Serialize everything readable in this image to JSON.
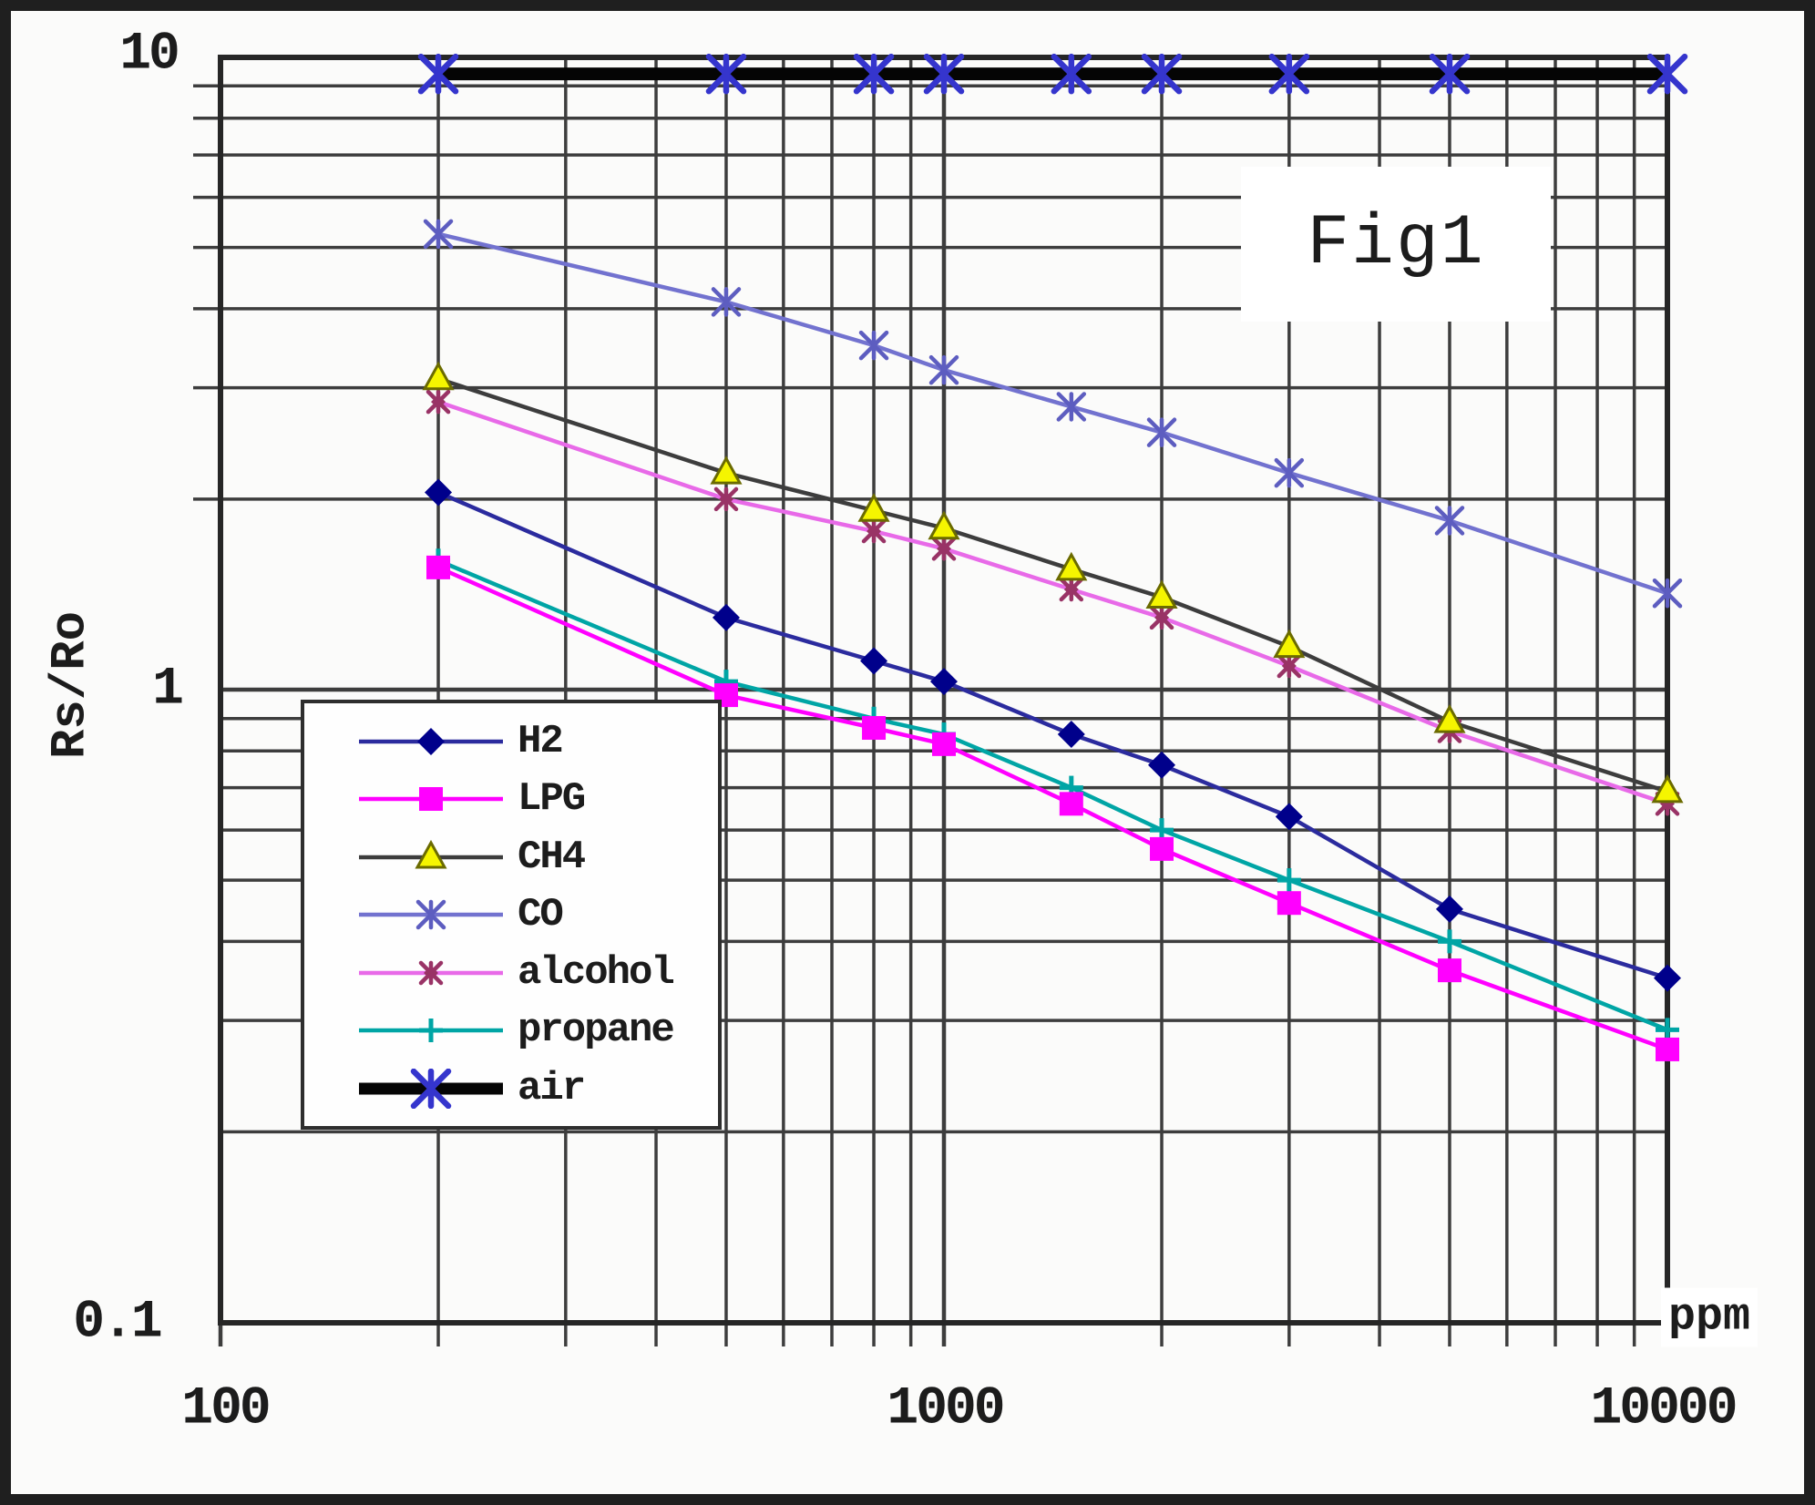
{
  "figure": {
    "title": "Fig1",
    "y_axis_label": "Rs/Ro",
    "x_axis_unit": "ppm",
    "y_tick_labels": [
      "10",
      "1",
      "0.1"
    ],
    "x_tick_labels": [
      "100",
      "1000",
      "10000"
    ]
  },
  "colors": {
    "grid": "#3d3d3d",
    "frame": "#262626",
    "background": "#ffffff",
    "text": "#1c1c1c"
  },
  "chart_data": {
    "type": "line",
    "title": "Fig1",
    "xlabel": "ppm",
    "ylabel": "Rs/Ro",
    "x_scale": "log",
    "y_scale": "log",
    "xlim": [
      100,
      10000
    ],
    "ylim": [
      0.1,
      10
    ],
    "grid": "log minor gridlines on both axes",
    "legend_position": "lower-left box",
    "x": [
      200,
      500,
      800,
      1000,
      1500,
      2000,
      3000,
      5000,
      10000
    ],
    "series": [
      {
        "name": "H2",
        "marker": "diamond",
        "color": "#2b2b9e",
        "marker_color": "#00008b",
        "values": [
          2.05,
          1.3,
          1.11,
          1.03,
          0.85,
          0.76,
          0.63,
          0.45,
          0.35
        ]
      },
      {
        "name": "LPG",
        "marker": "square",
        "color": "#ff00ff",
        "marker_color": "#ff00ff",
        "values": [
          1.56,
          0.98,
          0.87,
          0.82,
          0.66,
          0.56,
          0.46,
          0.36,
          0.27
        ]
      },
      {
        "name": "CH4",
        "marker": "triangle",
        "color": "#3d3d3d",
        "marker_color": "#f5f500",
        "values": [
          3.1,
          2.2,
          1.92,
          1.8,
          1.55,
          1.4,
          1.17,
          0.89,
          0.69
        ]
      },
      {
        "name": "CO",
        "marker": "star",
        "color": "#7272cf",
        "marker_color": "#5d5dc0",
        "values": [
          5.25,
          4.1,
          3.5,
          3.2,
          2.8,
          2.55,
          2.2,
          1.85,
          1.42
        ]
      },
      {
        "name": "alcohol",
        "marker": "starsmall",
        "color": "#e86ae8",
        "marker_color": "#993366",
        "values": [
          2.85,
          2.0,
          1.78,
          1.67,
          1.44,
          1.3,
          1.09,
          0.86,
          0.66
        ]
      },
      {
        "name": "propane",
        "marker": "plus",
        "color": "#00a5a5",
        "marker_color": "#00a5a5",
        "values": [
          1.6,
          1.03,
          0.9,
          0.85,
          0.7,
          0.6,
          0.5,
          0.4,
          0.29
        ]
      },
      {
        "name": "air",
        "marker": "starbold",
        "color": "#050505",
        "marker_color": "#3535cd",
        "values": [
          9.4,
          9.4,
          9.4,
          9.4,
          9.4,
          9.4,
          9.4,
          9.4,
          9.4
        ],
        "line_width": "thick"
      }
    ]
  }
}
